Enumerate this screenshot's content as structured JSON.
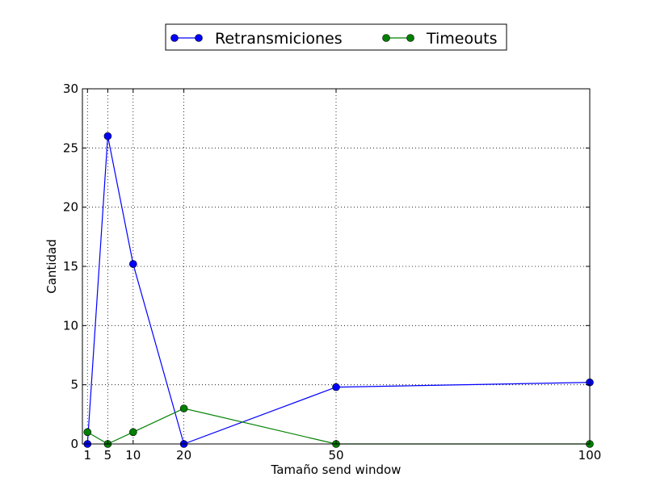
{
  "chart_data": {
    "type": "line",
    "title": "",
    "xlabel": "Tamaño send window",
    "ylabel": "Cantidad",
    "xlim": [
      0,
      100
    ],
    "ylim": [
      0,
      30
    ],
    "x": [
      1,
      5,
      10,
      20,
      50,
      100
    ],
    "xticks": [
      1,
      5,
      10,
      20,
      50,
      100
    ],
    "yticks": [
      0,
      5,
      10,
      15,
      20,
      25,
      30
    ],
    "grid": true,
    "legend_position": "top-center",
    "series": [
      {
        "name": "Retransmiciones",
        "color": "#0000ff",
        "values": [
          0,
          26,
          15.2,
          0,
          4.8,
          5.2
        ]
      },
      {
        "name": "Timeouts",
        "color": "#008000",
        "values": [
          1,
          0,
          1,
          3,
          0,
          0
        ]
      }
    ]
  }
}
